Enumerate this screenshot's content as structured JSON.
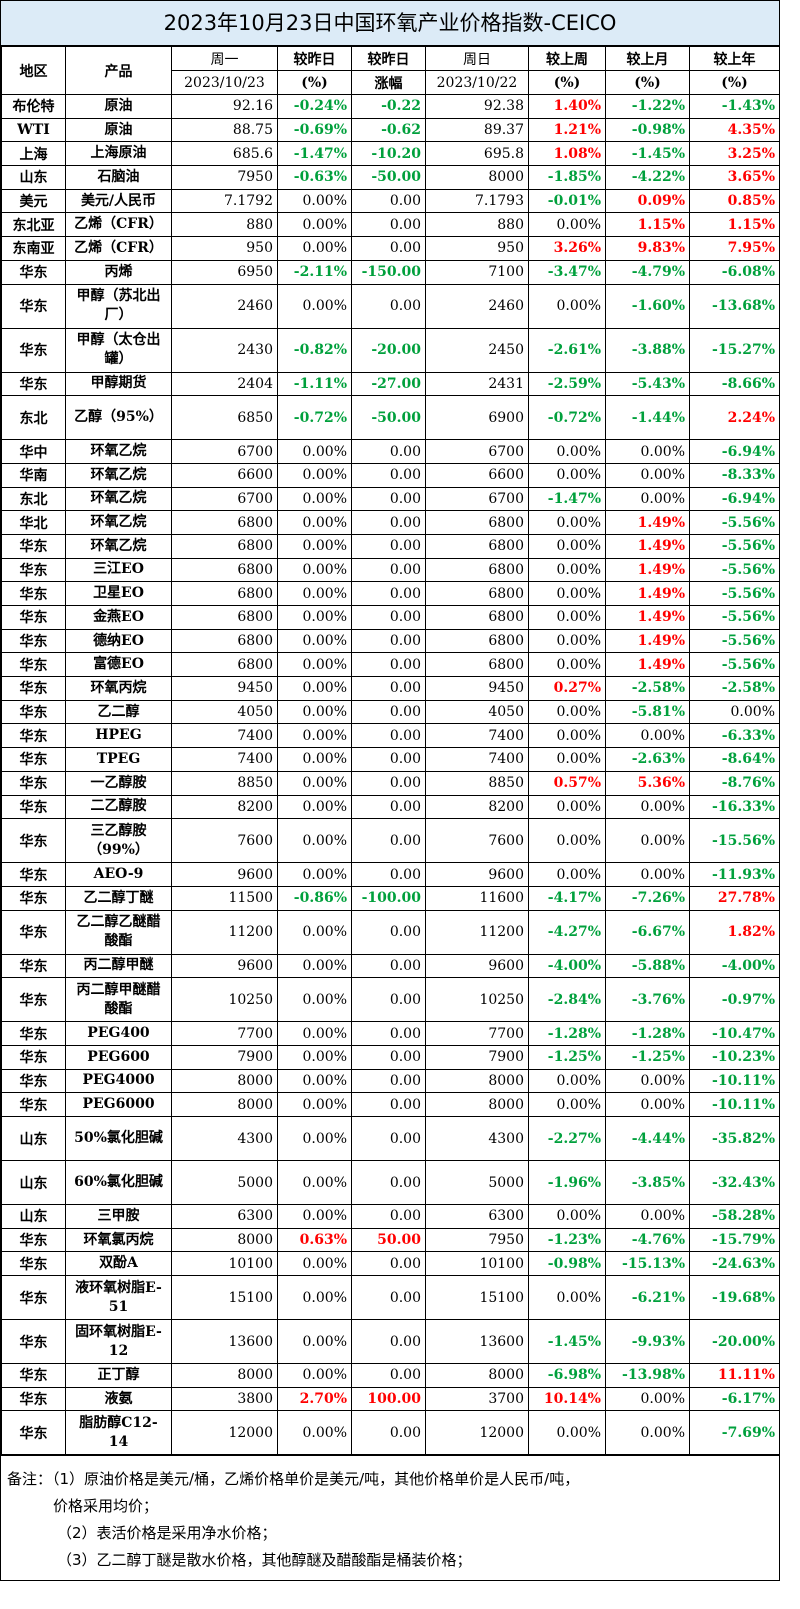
{
  "title": "2023年10月23日中国环氧产业价格指数-CEICO",
  "header": {
    "region": "地区",
    "product": "产品",
    "c1_top": "周一",
    "c1_sub": "2023/10/23",
    "c2_top": "较昨日",
    "c2_sub": "(%)",
    "c3_top": "较昨日",
    "c3_sub": "涨幅",
    "c4_top": "周日",
    "c4_sub": "2023/10/22",
    "c5_top": "较上周",
    "c5_sub": "(%)",
    "c6_top": "较上月",
    "c6_sub": "(%)",
    "c7_top": "较上年",
    "c7_sub": "(%)"
  },
  "rows": [
    {
      "region": "布伦特",
      "product": "原油",
      "mon": "92.16",
      "dp": "-0.24%",
      "dv": "-0.22",
      "sun": "92.38",
      "wk": "1.40%",
      "mo": "-1.22%",
      "yr": "-1.43%"
    },
    {
      "region": "WTI",
      "product": "原油",
      "mon": "88.75",
      "dp": "-0.69%",
      "dv": "-0.62",
      "sun": "89.37",
      "wk": "1.21%",
      "mo": "-0.98%",
      "yr": "4.35%"
    },
    {
      "region": "上海",
      "product": "上海原油",
      "mon": "685.6",
      "dp": "-1.47%",
      "dv": "-10.20",
      "sun": "695.8",
      "wk": "1.08%",
      "mo": "-1.45%",
      "yr": "3.25%"
    },
    {
      "region": "山东",
      "product": "石脑油",
      "mon": "7950",
      "dp": "-0.63%",
      "dv": "-50.00",
      "sun": "8000",
      "wk": "-1.85%",
      "mo": "-4.22%",
      "yr": "3.65%"
    },
    {
      "region": "美元",
      "product": "美元/人民币",
      "mon": "7.1792",
      "dp": "0.00%",
      "dv": "0.00",
      "sun": "7.1793",
      "wk": "-0.01%",
      "mo": "0.09%",
      "yr": "0.85%"
    },
    {
      "region": "东北亚",
      "product": "乙烯（CFR）",
      "mon": "880",
      "dp": "0.00%",
      "dv": "0.00",
      "sun": "880",
      "wk": "0.00%",
      "mo": "1.15%",
      "yr": "1.15%"
    },
    {
      "region": "东南亚",
      "product": "乙烯（CFR）",
      "mon": "950",
      "dp": "0.00%",
      "dv": "0.00",
      "sun": "950",
      "wk": "3.26%",
      "mo": "9.83%",
      "yr": "7.95%"
    },
    {
      "region": "华东",
      "product": "丙烯",
      "mon": "6950",
      "dp": "-2.11%",
      "dv": "-150.00",
      "sun": "7100",
      "wk": "-3.47%",
      "mo": "-4.79%",
      "yr": "-6.08%"
    },
    {
      "region": "华东",
      "product": "甲醇（苏北出厂）",
      "mon": "2460",
      "dp": "0.00%",
      "dv": "0.00",
      "sun": "2460",
      "wk": "0.00%",
      "mo": "-1.60%",
      "yr": "-13.68%",
      "tall": true
    },
    {
      "region": "华东",
      "product": "甲醇（太仓出罐）",
      "mon": "2430",
      "dp": "-0.82%",
      "dv": "-20.00",
      "sun": "2450",
      "wk": "-2.61%",
      "mo": "-3.88%",
      "yr": "-15.27%",
      "tall": true
    },
    {
      "region": "华东",
      "product": "甲醇期货",
      "mon": "2404",
      "dp": "-1.11%",
      "dv": "-27.00",
      "sun": "2431",
      "wk": "-2.59%",
      "mo": "-5.43%",
      "yr": "-8.66%"
    },
    {
      "region": "东北",
      "product": "乙醇（95%）",
      "mon": "6850",
      "dp": "-0.72%",
      "dv": "-50.00",
      "sun": "6900",
      "wk": "-0.72%",
      "mo": "-1.44%",
      "yr": "2.24%",
      "tall": true
    },
    {
      "region": "华中",
      "product": "环氧乙烷",
      "mon": "6700",
      "dp": "0.00%",
      "dv": "0.00",
      "sun": "6700",
      "wk": "0.00%",
      "mo": "0.00%",
      "yr": "-6.94%"
    },
    {
      "region": "华南",
      "product": "环氧乙烷",
      "mon": "6600",
      "dp": "0.00%",
      "dv": "0.00",
      "sun": "6600",
      "wk": "0.00%",
      "mo": "0.00%",
      "yr": "-8.33%"
    },
    {
      "region": "东北",
      "product": "环氧乙烷",
      "mon": "6700",
      "dp": "0.00%",
      "dv": "0.00",
      "sun": "6700",
      "wk": "-1.47%",
      "mo": "0.00%",
      "yr": "-6.94%"
    },
    {
      "region": "华北",
      "product": "环氧乙烷",
      "mon": "6800",
      "dp": "0.00%",
      "dv": "0.00",
      "sun": "6800",
      "wk": "0.00%",
      "mo": "1.49%",
      "yr": "-5.56%"
    },
    {
      "region": "华东",
      "product": "环氧乙烷",
      "mon": "6800",
      "dp": "0.00%",
      "dv": "0.00",
      "sun": "6800",
      "wk": "0.00%",
      "mo": "1.49%",
      "yr": "-5.56%"
    },
    {
      "region": "华东",
      "product": "三江EO",
      "mon": "6800",
      "dp": "0.00%",
      "dv": "0.00",
      "sun": "6800",
      "wk": "0.00%",
      "mo": "1.49%",
      "yr": "-5.56%"
    },
    {
      "region": "华东",
      "product": "卫星EO",
      "mon": "6800",
      "dp": "0.00%",
      "dv": "0.00",
      "sun": "6800",
      "wk": "0.00%",
      "mo": "1.49%",
      "yr": "-5.56%"
    },
    {
      "region": "华东",
      "product": "金燕EO",
      "mon": "6800",
      "dp": "0.00%",
      "dv": "0.00",
      "sun": "6800",
      "wk": "0.00%",
      "mo": "1.49%",
      "yr": "-5.56%"
    },
    {
      "region": "华东",
      "product": "德纳EO",
      "mon": "6800",
      "dp": "0.00%",
      "dv": "0.00",
      "sun": "6800",
      "wk": "0.00%",
      "mo": "1.49%",
      "yr": "-5.56%"
    },
    {
      "region": "华东",
      "product": "富德EO",
      "mon": "6800",
      "dp": "0.00%",
      "dv": "0.00",
      "sun": "6800",
      "wk": "0.00%",
      "mo": "1.49%",
      "yr": "-5.56%"
    },
    {
      "region": "华东",
      "product": "环氧丙烷",
      "mon": "9450",
      "dp": "0.00%",
      "dv": "0.00",
      "sun": "9450",
      "wk": "0.27%",
      "mo": "-2.58%",
      "yr": "-2.58%"
    },
    {
      "region": "华东",
      "product": "乙二醇",
      "mon": "4050",
      "dp": "0.00%",
      "dv": "0.00",
      "sun": "4050",
      "wk": "0.00%",
      "mo": "-5.81%",
      "yr": "0.00%"
    },
    {
      "region": "华东",
      "product": "HPEG",
      "mon": "7400",
      "dp": "0.00%",
      "dv": "0.00",
      "sun": "7400",
      "wk": "0.00%",
      "mo": "0.00%",
      "yr": "-6.33%"
    },
    {
      "region": "华东",
      "product": "TPEG",
      "mon": "7400",
      "dp": "0.00%",
      "dv": "0.00",
      "sun": "7400",
      "wk": "0.00%",
      "mo": "-2.63%",
      "yr": "-8.64%"
    },
    {
      "region": "华东",
      "product": "一乙醇胺",
      "mon": "8850",
      "dp": "0.00%",
      "dv": "0.00",
      "sun": "8850",
      "wk": "0.57%",
      "mo": "5.36%",
      "yr": "-8.76%"
    },
    {
      "region": "华东",
      "product": "二乙醇胺",
      "mon": "8200",
      "dp": "0.00%",
      "dv": "0.00",
      "sun": "8200",
      "wk": "0.00%",
      "mo": "0.00%",
      "yr": "-16.33%"
    },
    {
      "region": "华东",
      "product": "三乙醇胺（99%）",
      "mon": "7600",
      "dp": "0.00%",
      "dv": "0.00",
      "sun": "7600",
      "wk": "0.00%",
      "mo": "0.00%",
      "yr": "-15.56%",
      "tall": true
    },
    {
      "region": "华东",
      "product": "AEO-9",
      "mon": "9600",
      "dp": "0.00%",
      "dv": "0.00",
      "sun": "9600",
      "wk": "0.00%",
      "mo": "0.00%",
      "yr": "-11.93%"
    },
    {
      "region": "华东",
      "product": "乙二醇丁醚",
      "mon": "11500",
      "dp": "-0.86%",
      "dv": "-100.00",
      "sun": "11600",
      "wk": "-4.17%",
      "mo": "-7.26%",
      "yr": "27.78%"
    },
    {
      "region": "华东",
      "product": "乙二醇乙醚醋酸酯",
      "mon": "11200",
      "dp": "0.00%",
      "dv": "0.00",
      "sun": "11200",
      "wk": "-4.27%",
      "mo": "-6.67%",
      "yr": "1.82%",
      "tall": true
    },
    {
      "region": "华东",
      "product": "丙二醇甲醚",
      "mon": "9600",
      "dp": "0.00%",
      "dv": "0.00",
      "sun": "9600",
      "wk": "-4.00%",
      "mo": "-5.88%",
      "yr": "-4.00%"
    },
    {
      "region": "华东",
      "product": "丙二醇甲醚醋酸酯",
      "mon": "10250",
      "dp": "0.00%",
      "dv": "0.00",
      "sun": "10250",
      "wk": "-2.84%",
      "mo": "-3.76%",
      "yr": "-0.97%",
      "tall": true
    },
    {
      "region": "华东",
      "product": "PEG400",
      "mon": "7700",
      "dp": "0.00%",
      "dv": "0.00",
      "sun": "7700",
      "wk": "-1.28%",
      "mo": "-1.28%",
      "yr": "-10.47%"
    },
    {
      "region": "华东",
      "product": "PEG600",
      "mon": "7900",
      "dp": "0.00%",
      "dv": "0.00",
      "sun": "7900",
      "wk": "-1.25%",
      "mo": "-1.25%",
      "yr": "-10.23%"
    },
    {
      "region": "华东",
      "product": "PEG4000",
      "mon": "8000",
      "dp": "0.00%",
      "dv": "0.00",
      "sun": "8000",
      "wk": "0.00%",
      "mo": "0.00%",
      "yr": "-10.11%"
    },
    {
      "region": "华东",
      "product": "PEG6000",
      "mon": "8000",
      "dp": "0.00%",
      "dv": "0.00",
      "sun": "8000",
      "wk": "0.00%",
      "mo": "0.00%",
      "yr": "-10.11%"
    },
    {
      "region": "山东",
      "product": "50%氯化胆碱",
      "mon": "4300",
      "dp": "0.00%",
      "dv": "0.00",
      "sun": "4300",
      "wk": "-2.27%",
      "mo": "-4.44%",
      "yr": "-35.82%",
      "tall": true
    },
    {
      "region": "山东",
      "product": "60%氯化胆碱",
      "mon": "5000",
      "dp": "0.00%",
      "dv": "0.00",
      "sun": "5000",
      "wk": "-1.96%",
      "mo": "-3.85%",
      "yr": "-32.43%",
      "tall": true
    },
    {
      "region": "山东",
      "product": "三甲胺",
      "mon": "6300",
      "dp": "0.00%",
      "dv": "0.00",
      "sun": "6300",
      "wk": "0.00%",
      "mo": "0.00%",
      "yr": "-58.28%"
    },
    {
      "region": "华东",
      "product": "环氧氯丙烷",
      "mon": "8000",
      "dp": "0.63%",
      "dv": "50.00",
      "sun": "7950",
      "wk": "-1.23%",
      "mo": "-4.76%",
      "yr": "-15.79%"
    },
    {
      "region": "华东",
      "product": "双酚A",
      "mon": "10100",
      "dp": "0.00%",
      "dv": "0.00",
      "sun": "10100",
      "wk": "-0.98%",
      "mo": "-15.13%",
      "yr": "-24.63%"
    },
    {
      "region": "华东",
      "product": "液环氧树脂E-51",
      "mon": "15100",
      "dp": "0.00%",
      "dv": "0.00",
      "sun": "15100",
      "wk": "0.00%",
      "mo": "-6.21%",
      "yr": "-19.68%",
      "tall": true
    },
    {
      "region": "华东",
      "product": "固环氧树脂E-12",
      "mon": "13600",
      "dp": "0.00%",
      "dv": "0.00",
      "sun": "13600",
      "wk": "-1.45%",
      "mo": "-9.93%",
      "yr": "-20.00%",
      "tall": true
    },
    {
      "region": "华东",
      "product": "正丁醇",
      "mon": "8000",
      "dp": "0.00%",
      "dv": "0.00",
      "sun": "8000",
      "wk": "-6.98%",
      "mo": "-13.98%",
      "yr": "11.11%"
    },
    {
      "region": "华东",
      "product": "液氨",
      "mon": "3800",
      "dp": "2.70%",
      "dv": "100.00",
      "sun": "3700",
      "wk": "10.14%",
      "mo": "0.00%",
      "yr": "-6.17%"
    },
    {
      "region": "华东",
      "product": "脂肪醇C12-14",
      "mon": "12000",
      "dp": "0.00%",
      "dv": "0.00",
      "sun": "12000",
      "wk": "0.00%",
      "mo": "0.00%",
      "yr": "-7.69%",
      "tall": true
    }
  ],
  "notes": {
    "line1": "备注：（1）原油价格是美元/桶，乙烯价格单价是美元/吨，其他价格单价是人民币/吨，",
    "line2": "价格采用均价；",
    "line3": "（2）表活价格是采用净水价格；",
    "line4": "（3）乙二醇丁醚是散水价格，其他醇醚及醋酸酯是桶装价格；"
  },
  "colors": {
    "positive": "#ff0000",
    "negative": "#00a03c",
    "title_bg": "#dcebf7"
  }
}
